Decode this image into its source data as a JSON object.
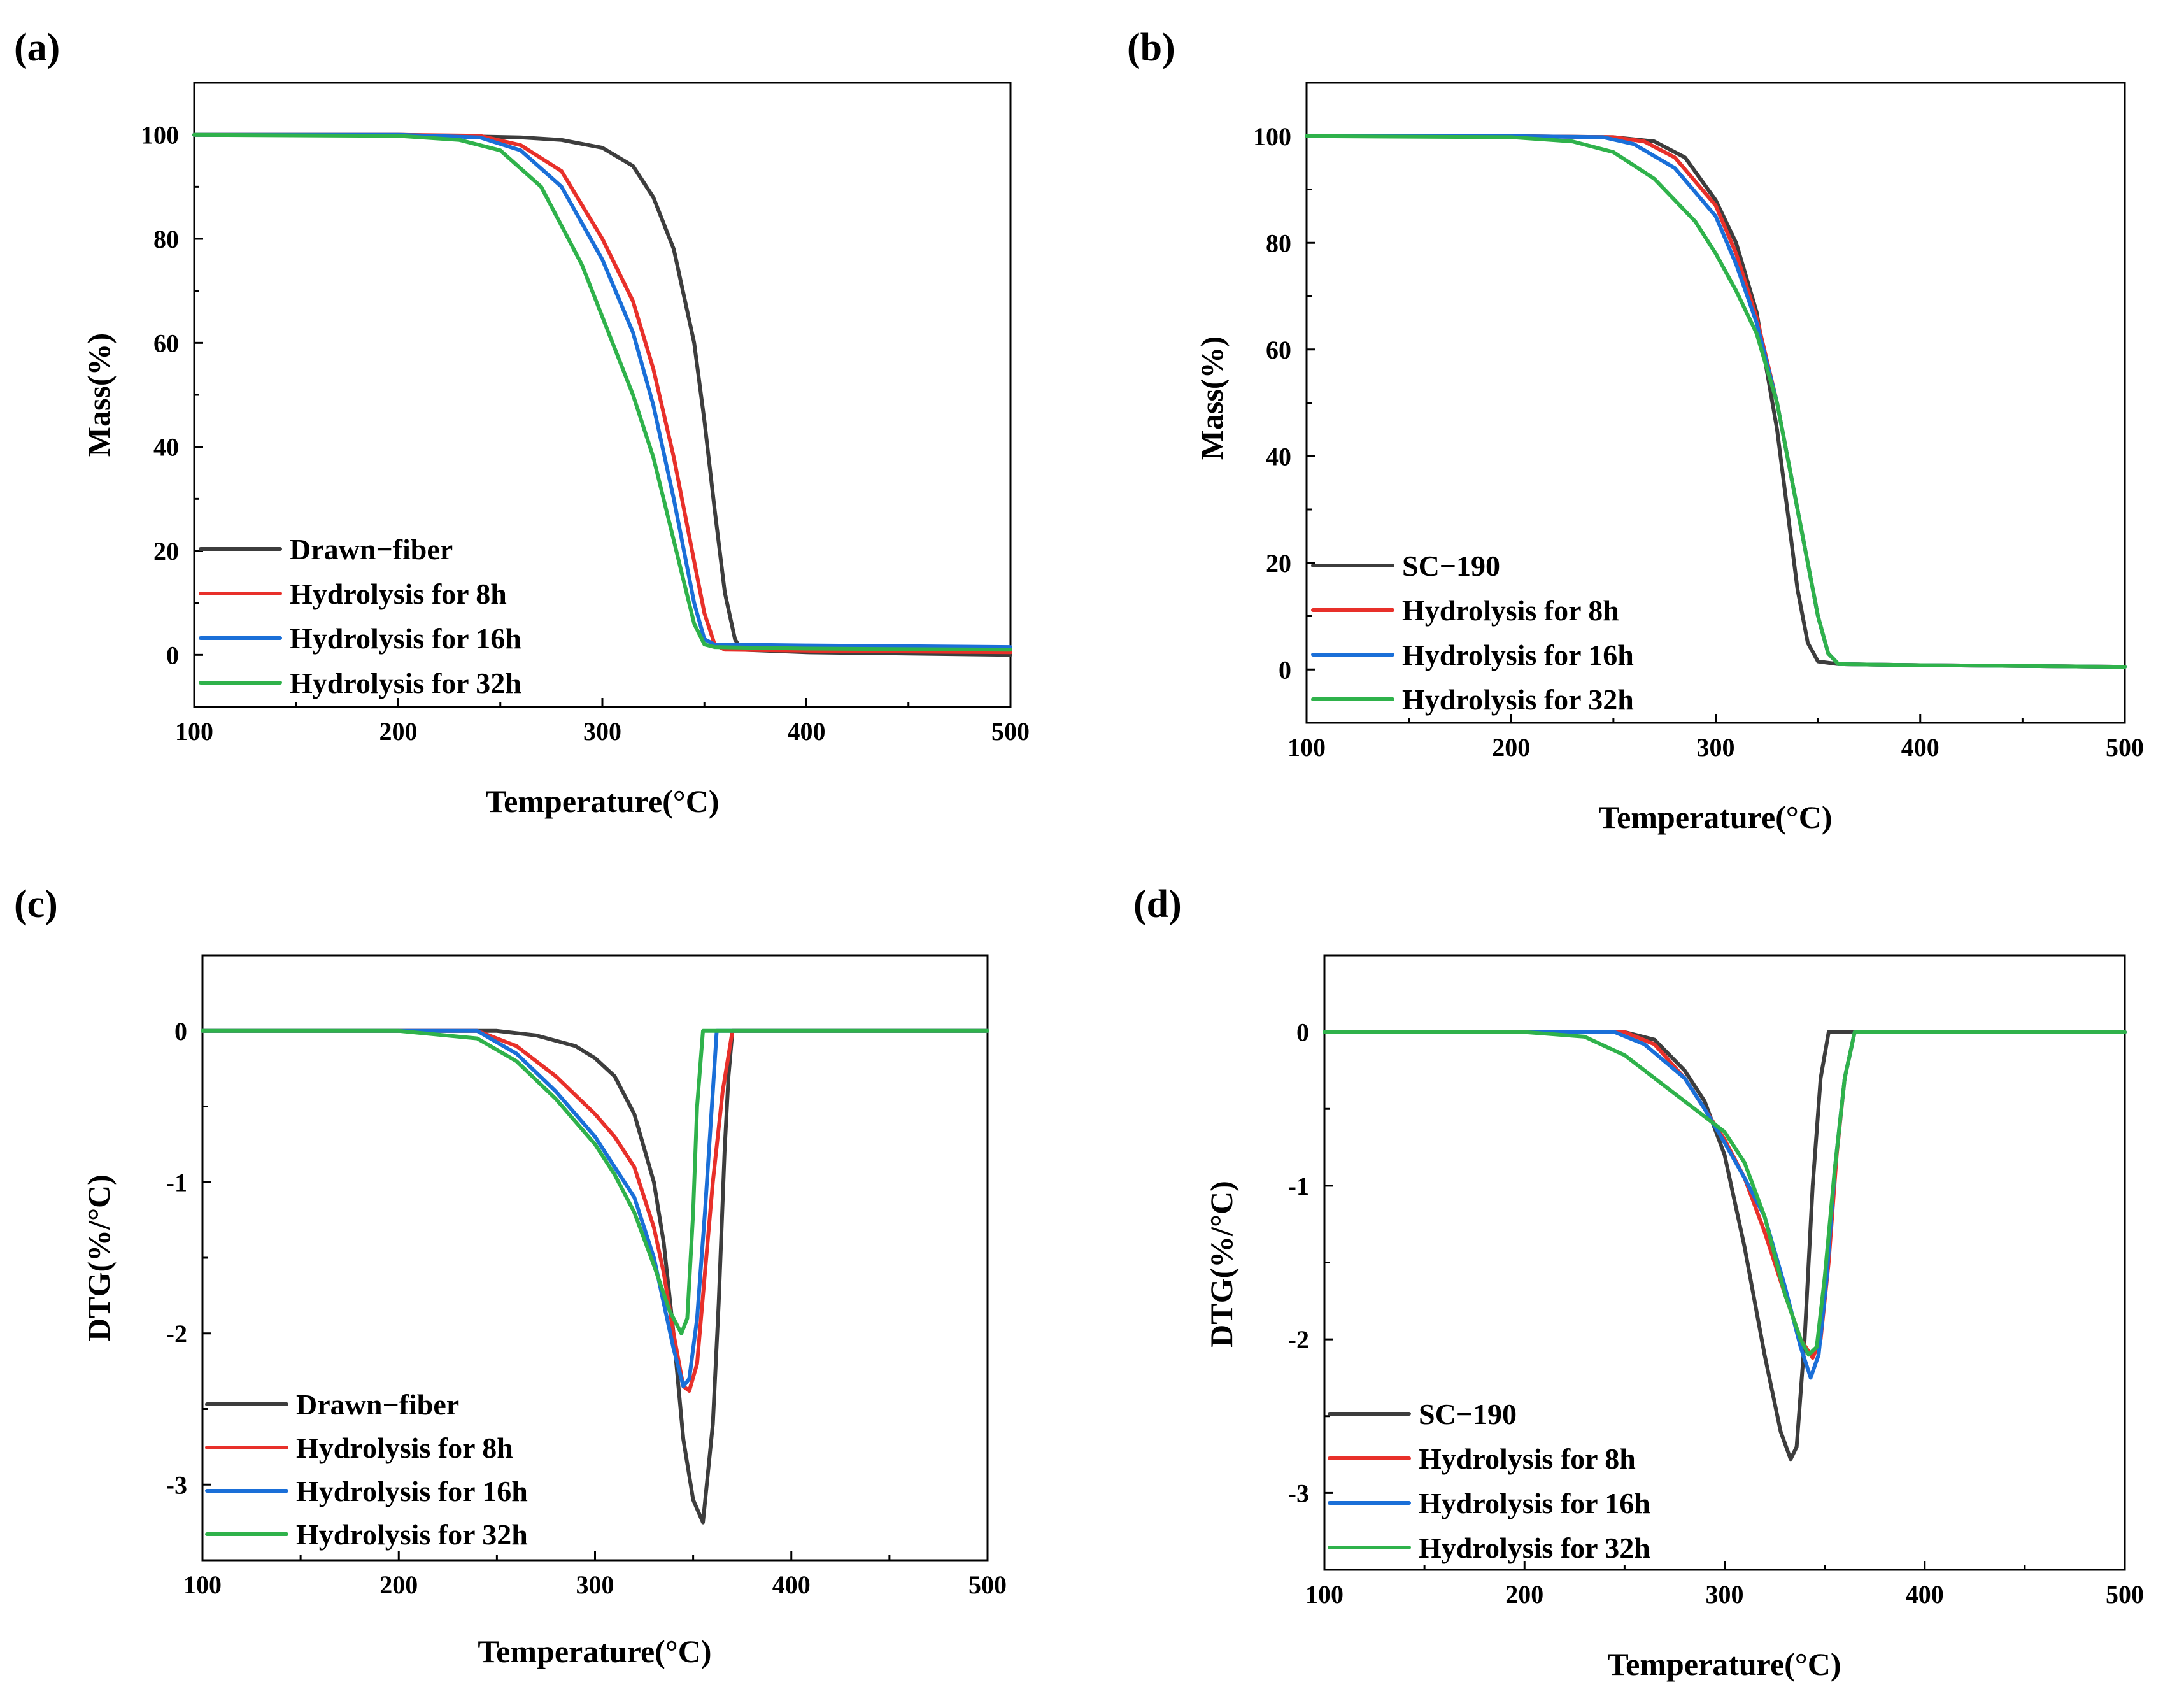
{
  "colors": {
    "drawn": "#3d3d3d",
    "h8": "#e8302a",
    "h16": "#1a6fd8",
    "h32": "#2fb24b"
  },
  "chart_data": [
    {
      "panel": "(a)",
      "type": "line",
      "xlabel": "Temperature(°C)",
      "ylabel": "Mass(%)",
      "xlim": [
        100,
        500
      ],
      "ylim": [
        -10,
        110
      ],
      "xticks": [
        100,
        200,
        300,
        400,
        500
      ],
      "yticks": [
        0,
        20,
        40,
        60,
        80,
        100
      ],
      "legend_position": "bottom-left",
      "series": [
        {
          "name": "Drawn−fiber",
          "color_key": "drawn",
          "x": [
            100,
            200,
            260,
            280,
            300,
            315,
            325,
            335,
            345,
            350,
            355,
            360,
            365,
            368,
            400,
            500
          ],
          "y": [
            100,
            100,
            99.5,
            99,
            97.5,
            94,
            88,
            78,
            60,
            45,
            28,
            12,
            3,
            1,
            0.5,
            0
          ]
        },
        {
          "name": "Hydrolysis for 8h",
          "color_key": "h8",
          "x": [
            100,
            200,
            240,
            260,
            280,
            300,
            315,
            325,
            335,
            345,
            350,
            355,
            360,
            400,
            500
          ],
          "y": [
            100,
            100,
            99.8,
            98,
            93,
            80,
            68,
            55,
            38,
            18,
            8,
            2,
            1,
            0.8,
            0.5
          ]
        },
        {
          "name": "Hydrolysis for 16h",
          "color_key": "h16",
          "x": [
            100,
            200,
            240,
            260,
            280,
            300,
            315,
            325,
            335,
            345,
            350,
            355,
            400,
            500
          ],
          "y": [
            100,
            100,
            99.5,
            97,
            90,
            76,
            62,
            48,
            30,
            10,
            3,
            2,
            1.8,
            1.5
          ]
        },
        {
          "name": "Hydrolysis for 32h",
          "color_key": "h32",
          "x": [
            100,
            200,
            230,
            250,
            270,
            290,
            305,
            315,
            325,
            335,
            345,
            350,
            355,
            400,
            500
          ],
          "y": [
            100,
            99.8,
            99,
            97,
            90,
            75,
            60,
            50,
            38,
            22,
            6,
            2,
            1.5,
            1.2,
            1
          ]
        }
      ]
    },
    {
      "panel": "(b)",
      "type": "line",
      "xlabel": "Temperature(°C)",
      "ylabel": "Mass(%)",
      "xlim": [
        100,
        500
      ],
      "ylim": [
        -10,
        110
      ],
      "xticks": [
        100,
        200,
        300,
        400,
        500
      ],
      "yticks": [
        0,
        20,
        40,
        60,
        80,
        100
      ],
      "legend_position": "bottom-left",
      "series": [
        {
          "name": "SC−190",
          "color_key": "drawn",
          "x": [
            100,
            200,
            250,
            270,
            285,
            300,
            310,
            320,
            330,
            340,
            345,
            350,
            360,
            400,
            500
          ],
          "y": [
            100,
            100,
            99.8,
            99,
            96,
            88,
            80,
            67,
            45,
            15,
            5,
            1.5,
            1,
            0.8,
            0.5
          ]
        },
        {
          "name": "Hydrolysis for 8h",
          "color_key": "h8",
          "x": [
            100,
            200,
            250,
            265,
            280,
            300,
            310,
            320,
            330,
            340,
            350,
            355,
            360,
            400,
            500
          ],
          "y": [
            100,
            100,
            99.8,
            99,
            96,
            87,
            78,
            66,
            50,
            30,
            10,
            3,
            1,
            0.8,
            0.5
          ]
        },
        {
          "name": "Hydrolysis for 16h",
          "color_key": "h16",
          "x": [
            100,
            200,
            245,
            260,
            280,
            300,
            310,
            320,
            330,
            340,
            350,
            355,
            360,
            400,
            500
          ],
          "y": [
            100,
            100,
            99.8,
            98.5,
            94,
            85,
            76,
            65,
            50,
            30,
            10,
            3,
            1,
            0.8,
            0.5
          ]
        },
        {
          "name": "Hydrolysis for 32h",
          "color_key": "h32",
          "x": [
            100,
            200,
            230,
            250,
            270,
            290,
            300,
            310,
            320,
            330,
            340,
            350,
            355,
            360,
            400,
            500
          ],
          "y": [
            100,
            99.8,
            99,
            97,
            92,
            84,
            78,
            71,
            63,
            50,
            30,
            10,
            3,
            1,
            0.8,
            0.5
          ]
        }
      ]
    },
    {
      "panel": "(c)",
      "type": "line",
      "xlabel": "Temperature(°C)",
      "ylabel": "DTG(%/°C)",
      "xlim": [
        100,
        500
      ],
      "ylim": [
        -3.5,
        0.5
      ],
      "xticks": [
        100,
        200,
        300,
        400,
        500
      ],
      "yticks": [
        -3,
        -2,
        -1,
        0
      ],
      "legend_position": "bottom-left",
      "series": [
        {
          "name": "Drawn−fiber",
          "color_key": "drawn",
          "x": [
            100,
            200,
            250,
            270,
            290,
            300,
            310,
            320,
            330,
            335,
            340,
            345,
            350,
            355,
            360,
            363,
            366,
            368,
            370,
            500
          ],
          "y": [
            0,
            0,
            0,
            -0.03,
            -0.1,
            -0.18,
            -0.3,
            -0.55,
            -1.0,
            -1.4,
            -2.0,
            -2.7,
            -3.1,
            -3.25,
            -2.6,
            -1.8,
            -0.8,
            -0.3,
            0,
            0
          ]
        },
        {
          "name": "Hydrolysis for 8h",
          "color_key": "h8",
          "x": [
            100,
            200,
            240,
            260,
            280,
            300,
            310,
            320,
            330,
            335,
            340,
            345,
            348,
            352,
            356,
            360,
            365,
            370,
            500
          ],
          "y": [
            0,
            0,
            0,
            -0.1,
            -0.3,
            -0.55,
            -0.7,
            -0.9,
            -1.3,
            -1.6,
            -2.0,
            -2.35,
            -2.38,
            -2.2,
            -1.6,
            -1.0,
            -0.4,
            0,
            0
          ]
        },
        {
          "name": "Hydrolysis for 16h",
          "color_key": "h16",
          "x": [
            100,
            200,
            240,
            260,
            280,
            300,
            310,
            320,
            330,
            335,
            340,
            345,
            348,
            352,
            356,
            360,
            362,
            500
          ],
          "y": [
            0,
            0,
            0,
            -0.15,
            -0.4,
            -0.7,
            -0.9,
            -1.1,
            -1.5,
            -1.8,
            -2.1,
            -2.35,
            -2.3,
            -1.9,
            -1.2,
            -0.4,
            0,
            0
          ]
        },
        {
          "name": "Hydrolysis for 32h",
          "color_key": "h32",
          "x": [
            100,
            200,
            240,
            260,
            280,
            290,
            300,
            310,
            320,
            330,
            338,
            344,
            347,
            350,
            352,
            355,
            500
          ],
          "y": [
            0,
            0,
            -0.05,
            -0.2,
            -0.45,
            -0.6,
            -0.75,
            -0.95,
            -1.2,
            -1.55,
            -1.85,
            -2.0,
            -1.9,
            -1.2,
            -0.5,
            0,
            0
          ]
        }
      ]
    },
    {
      "panel": "(d)",
      "type": "line",
      "xlabel": "Temperature(°C)",
      "ylabel": "DTG(%/°C)",
      "xlim": [
        100,
        500
      ],
      "ylim": [
        -3.5,
        0.5
      ],
      "xticks": [
        100,
        200,
        300,
        400,
        500
      ],
      "yticks": [
        -3,
        -2,
        -1,
        0
      ],
      "legend_position": "bottom-left",
      "series": [
        {
          "name": "SC−190",
          "color_key": "drawn",
          "x": [
            100,
            200,
            250,
            265,
            280,
            290,
            300,
            310,
            320,
            328,
            333,
            336,
            340,
            344,
            348,
            352,
            500
          ],
          "y": [
            0,
            0,
            0,
            -0.05,
            -0.25,
            -0.45,
            -0.8,
            -1.4,
            -2.1,
            -2.6,
            -2.78,
            -2.7,
            -2.0,
            -1.0,
            -0.3,
            0,
            0
          ]
        },
        {
          "name": "Hydrolysis for 8h",
          "color_key": "h8",
          "x": [
            100,
            200,
            250,
            265,
            280,
            290,
            300,
            310,
            320,
            330,
            338,
            344,
            348,
            352,
            356,
            360,
            365,
            500
          ],
          "y": [
            0,
            0,
            0,
            -0.08,
            -0.3,
            -0.5,
            -0.7,
            -0.95,
            -1.3,
            -1.7,
            -2.0,
            -2.12,
            -2.0,
            -1.5,
            -0.8,
            -0.3,
            0,
            0
          ]
        },
        {
          "name": "Hydrolysis for 16h",
          "color_key": "h16",
          "x": [
            100,
            200,
            245,
            260,
            280,
            290,
            300,
            310,
            320,
            330,
            338,
            343,
            347,
            351,
            355,
            360,
            365,
            500
          ],
          "y": [
            0,
            0,
            0,
            -0.08,
            -0.3,
            -0.5,
            -0.72,
            -0.95,
            -1.2,
            -1.65,
            -2.05,
            -2.25,
            -2.1,
            -1.6,
            -0.9,
            -0.3,
            0,
            0
          ]
        },
        {
          "name": "Hydrolysis for 32h",
          "color_key": "h32",
          "x": [
            100,
            200,
            230,
            250,
            270,
            285,
            290,
            300,
            310,
            320,
            330,
            338,
            342,
            346,
            350,
            355,
            360,
            365,
            500
          ],
          "y": [
            0,
            0,
            -0.03,
            -0.15,
            -0.35,
            -0.5,
            -0.55,
            -0.65,
            -0.85,
            -1.2,
            -1.7,
            -2.0,
            -2.1,
            -2.05,
            -1.6,
            -0.9,
            -0.3,
            0,
            0
          ]
        }
      ]
    }
  ]
}
